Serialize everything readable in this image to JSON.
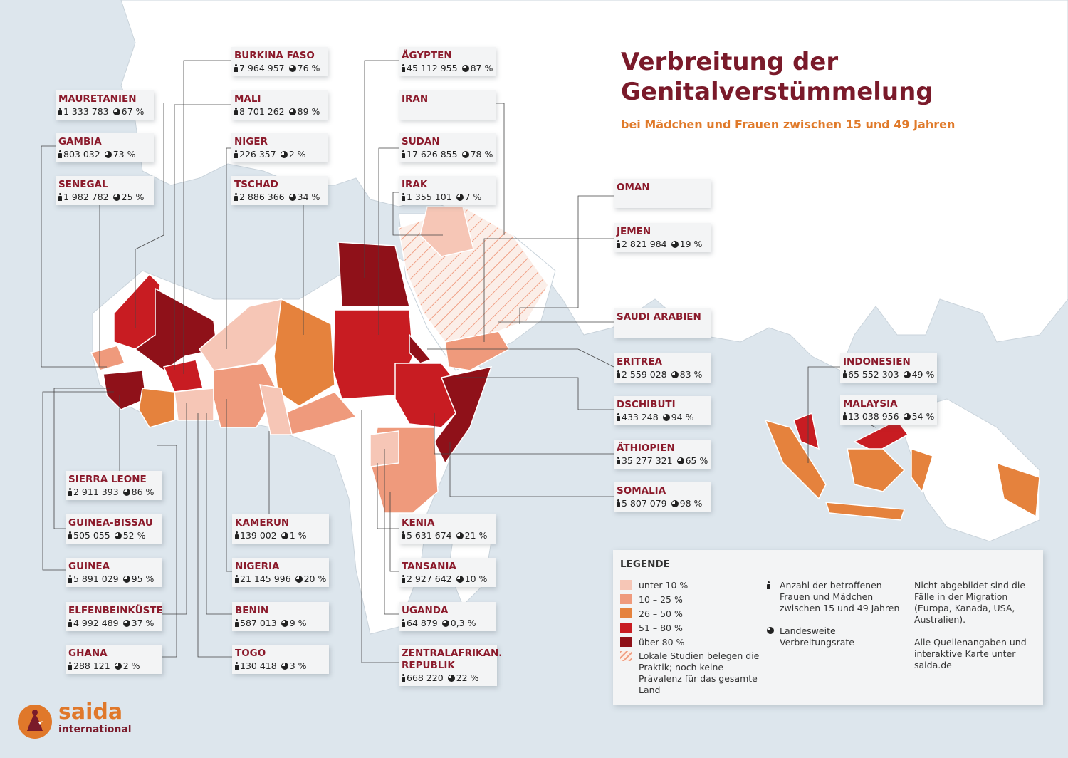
{
  "title_line1": "Verbreitung der",
  "title_line2": "Genitalverstümmelung",
  "subtitle": "bei Mädchen und Frauen zwischen 15 und 49 Jahren",
  "colors": {
    "under10": "#f6c6b6",
    "c10_25": "#ef9a7c",
    "c26_50": "#e5823d",
    "c51_80": "#c81c22",
    "over80": "#8f1119",
    "brand": "#7a1a2a",
    "accent": "#e07a2a"
  },
  "countries": [
    {
      "name": "MAURETANIEN",
      "count": "1 333 783",
      "rate": "67 %"
    },
    {
      "name": "GAMBIA",
      "count": "803 032",
      "rate": "73 %"
    },
    {
      "name": "SENEGAL",
      "count": "1 982 782",
      "rate": "25 %"
    },
    {
      "name": "BURKINA FASO",
      "count": "7 964 957",
      "rate": "76 %"
    },
    {
      "name": "MALI",
      "count": "8 701 262",
      "rate": "89 %"
    },
    {
      "name": "NIGER",
      "count": "226 357",
      "rate": "2 %"
    },
    {
      "name": "TSCHAD",
      "count": "2 886 366",
      "rate": "34 %"
    },
    {
      "name": "ÄGYPTEN",
      "count": "45 112 955",
      "rate": "87 %"
    },
    {
      "name": "IRAN",
      "count": "",
      "rate": ""
    },
    {
      "name": "SUDAN",
      "count": "17 626 855",
      "rate": "78 %"
    },
    {
      "name": "IRAK",
      "count": "1 355 101",
      "rate": "7 %"
    },
    {
      "name": "OMAN",
      "count": "",
      "rate": ""
    },
    {
      "name": "JEMEN",
      "count": "2 821 984",
      "rate": "19 %"
    },
    {
      "name": "SAUDI ARABIEN",
      "count": "",
      "rate": ""
    },
    {
      "name": "ERITREA",
      "count": "2 559 028",
      "rate": "83 %"
    },
    {
      "name": "DSCHIBUTI",
      "count": "433 248",
      "rate": "94 %"
    },
    {
      "name": "ÄTHIOPIEN",
      "count": "35 277 321",
      "rate": "65 %"
    },
    {
      "name": "SOMALIA",
      "count": "5 807 079",
      "rate": "98 %"
    },
    {
      "name": "INDONESIEN",
      "count": "65 552 303",
      "rate": "49 %"
    },
    {
      "name": "MALAYSIA",
      "count": "13 038 956",
      "rate": "54 %"
    },
    {
      "name": "SIERRA LEONE",
      "count": "2 911 393",
      "rate": "86 %"
    },
    {
      "name": "GUINEA-BISSAU",
      "count": "505 055",
      "rate": "52 %"
    },
    {
      "name": "GUINEA",
      "count": "5 891 029",
      "rate": "95 %"
    },
    {
      "name": "ELFENBEINKÜSTE",
      "count": "4 992 489",
      "rate": "37 %"
    },
    {
      "name": "GHANA",
      "count": "288 121",
      "rate": "2 %"
    },
    {
      "name": "KAMERUN",
      "count": "139 002",
      "rate": "1 %"
    },
    {
      "name": "NIGERIA",
      "count": "21 145 996",
      "rate": "20 %"
    },
    {
      "name": "BENIN",
      "count": "587 013",
      "rate": "9 %"
    },
    {
      "name": "TOGO",
      "count": "130 418",
      "rate": "3 %"
    },
    {
      "name": "KENIA",
      "count": "5 631 674",
      "rate": "21 %"
    },
    {
      "name": "TANSANIA",
      "count": "2 927 642",
      "rate": "10 %"
    },
    {
      "name": "UGANDA",
      "count": "64 879",
      "rate": "0,3 %"
    },
    {
      "name": "ZENTRALAFRIKAN. REPUBLIK",
      "count": "668 220",
      "rate": "22 %"
    }
  ],
  "legend": {
    "title": "LEGENDE",
    "items": [
      "unter 10 %",
      "10 – 25 %",
      "26 – 50 %",
      "51 – 80 %",
      "über 80 %"
    ],
    "hatch": "Lokale Studien belegen die Praktik; noch keine Prävalenz für das gesamte Land",
    "count_desc": "Anzahl der betroffenen Frauen und Mädchen zwischen 15 und 49 Jahren",
    "rate_desc": "Landesweite Verbreitungsrate",
    "note1": "Nicht abgebildet sind die Fälle in der Migration (Europa, Kanada, USA, Australien).",
    "note2": "Alle Quellenangaben und interaktive Karte unter saida.de"
  },
  "logo": {
    "name": "saida",
    "sub": "international"
  }
}
